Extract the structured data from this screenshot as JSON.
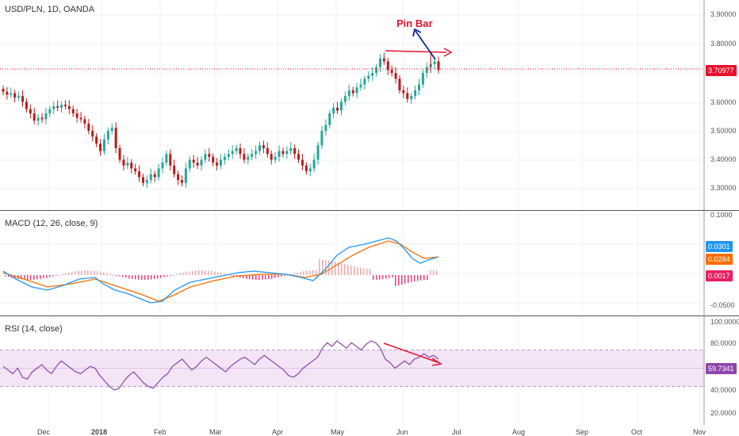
{
  "colors": {
    "up": "#26a69a",
    "down": "#b71c1c",
    "macd": "#2196f3",
    "signal": "#ff6d00",
    "hist_pos": "#ef9a9a",
    "hist_neg": "#e91e63",
    "rsi": "#8e44ad",
    "rsi_band": "#f3e5f5",
    "annot_red": "#e8112d",
    "annot_blue": "#0d2a9e"
  },
  "price_pane": {
    "title": "USD/PLN, 1D, OANDA",
    "axis": [
      "3.90000",
      "3.80000",
      "3.70000",
      "3.60000",
      "3.50000",
      "3.40000",
      "3.30000"
    ],
    "last_tag": "3.70977",
    "annotation": "Pin Bar"
  },
  "macd_pane": {
    "title": "MACD (12, 26, close, 9)",
    "axis": [
      "0.1000",
      "-0.0500"
    ],
    "tag_macd": "0.0301",
    "tag_signal": "0.0284",
    "tag_hist": "0.0017"
  },
  "rsi_pane": {
    "title": "RSI (14, close)",
    "axis": [
      "100.0000",
      "80.0000",
      "40.0000",
      "20.0000"
    ],
    "tag_rsi": "59.7341"
  },
  "time_axis": [
    "Dec",
    "2018",
    "Feb",
    "Mar",
    "Apr",
    "May",
    "Jun",
    "Jul",
    "Aug",
    "Sep",
    "Oct",
    "Nov"
  ],
  "chart_data": {
    "type": "candlestick",
    "title": "USD/PLN, 1D, OANDA",
    "close": [
      3.635,
      3.625,
      3.63,
      3.615,
      3.62,
      3.6,
      3.575,
      3.56,
      3.535,
      3.545,
      3.54,
      3.56,
      3.575,
      3.585,
      3.58,
      3.59,
      3.585,
      3.575,
      3.56,
      3.545,
      3.54,
      3.525,
      3.5,
      3.48,
      3.455,
      3.43,
      3.47,
      3.5,
      3.51,
      3.44,
      3.4,
      3.38,
      3.39,
      3.37,
      3.36,
      3.34,
      3.32,
      3.33,
      3.35,
      3.34,
      3.37,
      3.39,
      3.42,
      3.38,
      3.35,
      3.33,
      3.32,
      3.37,
      3.4,
      3.39,
      3.38,
      3.4,
      3.42,
      3.41,
      3.39,
      3.38,
      3.4,
      3.41,
      3.42,
      3.43,
      3.44,
      3.42,
      3.4,
      3.41,
      3.42,
      3.43,
      3.45,
      3.44,
      3.42,
      3.4,
      3.41,
      3.43,
      3.42,
      3.43,
      3.44,
      3.42,
      3.4,
      3.38,
      3.36,
      3.37,
      3.4,
      3.45,
      3.5,
      3.52,
      3.56,
      3.58,
      3.57,
      3.6,
      3.62,
      3.64,
      3.63,
      3.65,
      3.66,
      3.68,
      3.69,
      3.7,
      3.72,
      3.75,
      3.74,
      3.71,
      3.7,
      3.68,
      3.64,
      3.63,
      3.61,
      3.62,
      3.64,
      3.66,
      3.7,
      3.72,
      3.73,
      3.74,
      3.71
    ]
  }
}
